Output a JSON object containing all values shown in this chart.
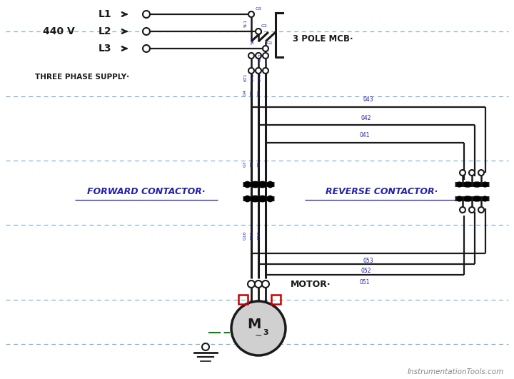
{
  "bg_color": "#ffffff",
  "lc": "#1a1a1a",
  "dc": "#7ab0d4",
  "bc": "#2222aa",
  "rc_col": "#cc0000",
  "gc": "#008800",
  "fig_w": 7.2,
  "fig_h": 5.31,
  "dpi": 100,
  "voltage": "440 V",
  "three_phase": "THREE PHASE SUPPLY·",
  "mcb_lbl": "3 POLE MCB·",
  "forward_lbl": "FORWARD CONTACTOR·",
  "reverse_lbl": "REVERSE CONTACTOR·",
  "motor_lbl": "MOTOR·",
  "watermark": "InstrumentationTools.com"
}
